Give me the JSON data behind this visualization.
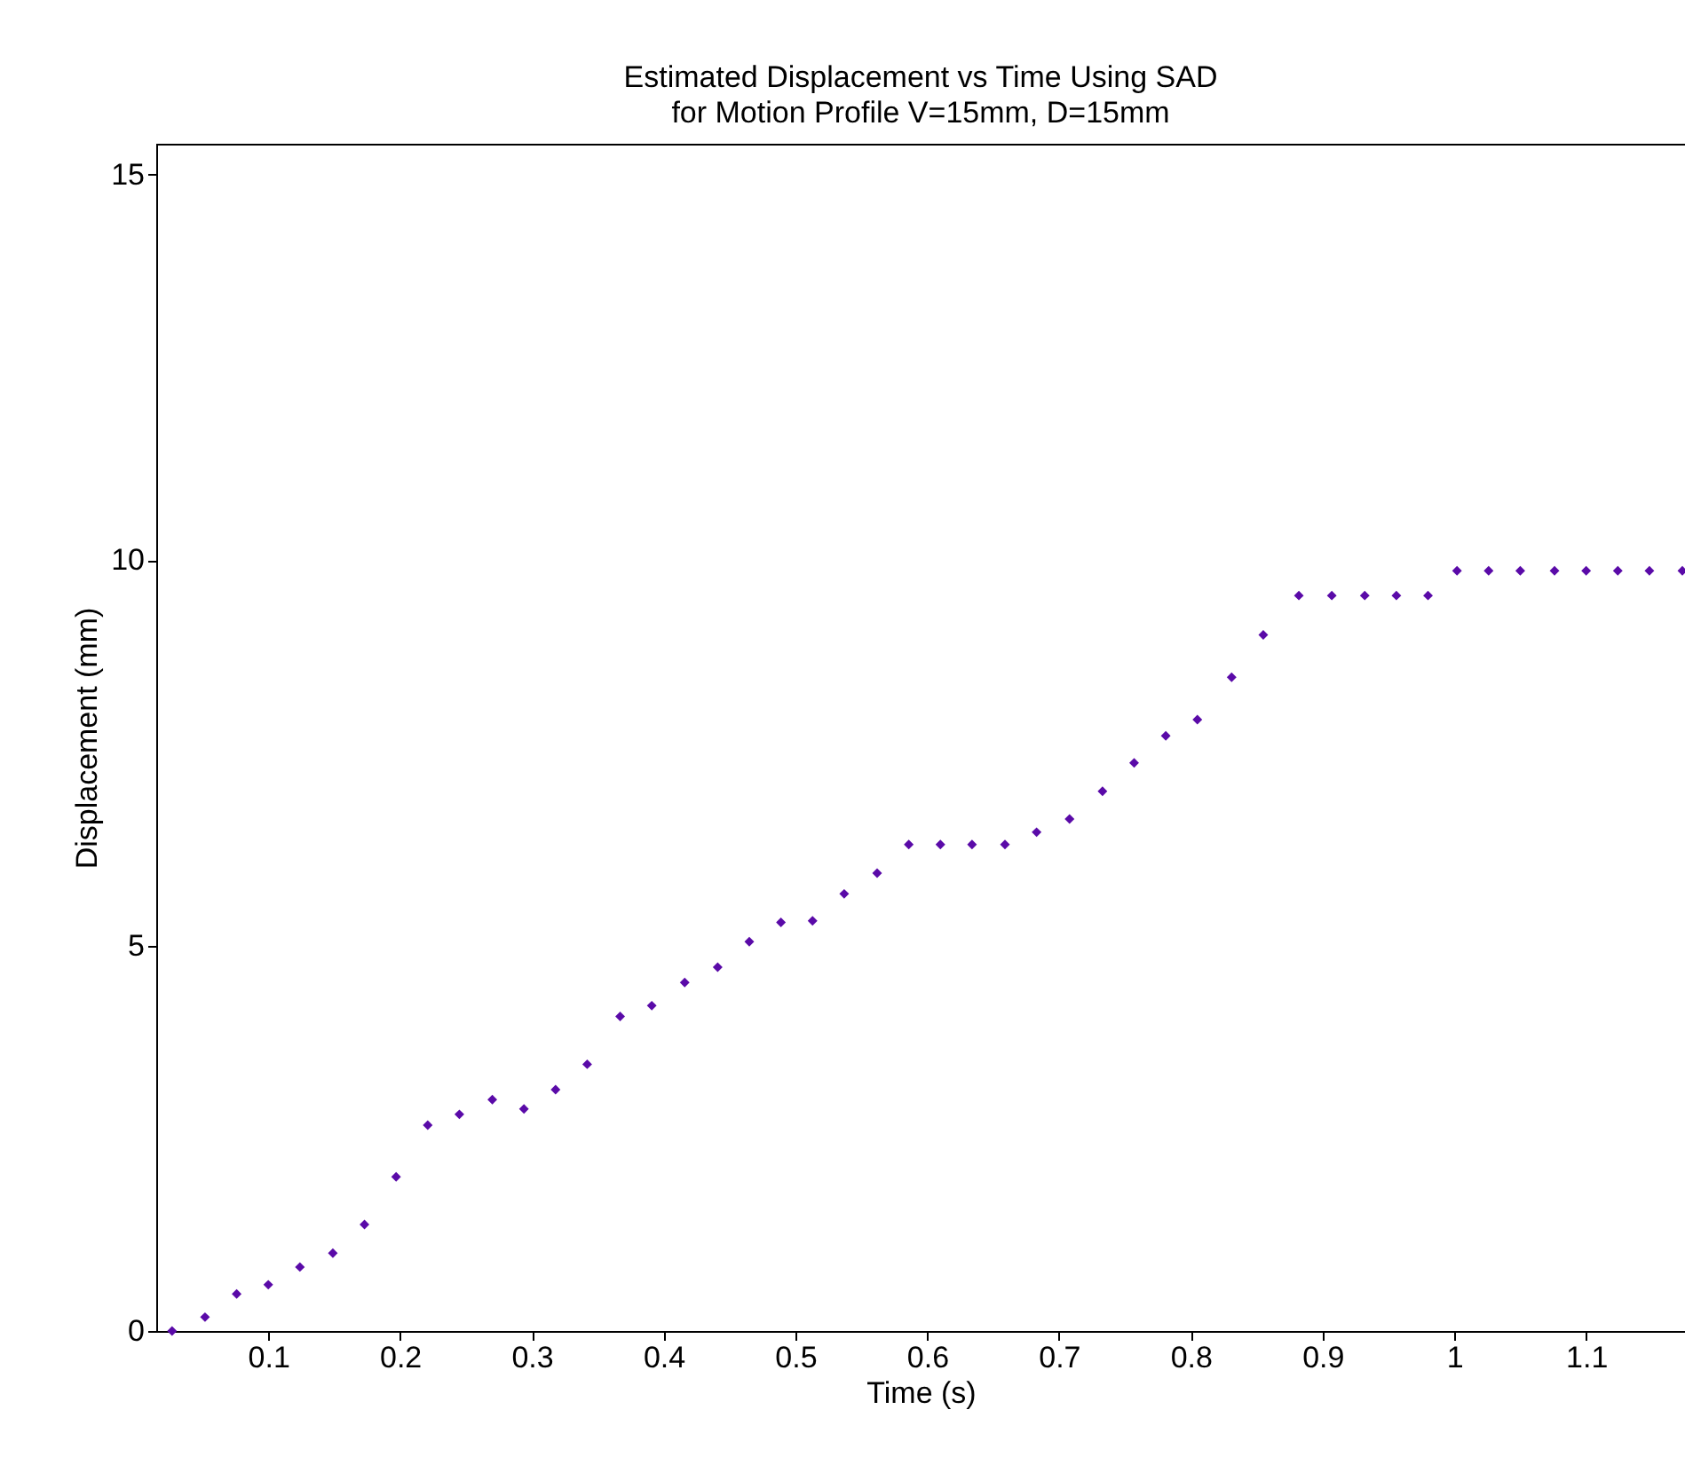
{
  "chart_data": {
    "type": "scatter",
    "title": "Estimated Displacement vs Time Using SAD",
    "subtitle": "for Motion Profile V=15mm, D=15mm",
    "xlabel": "Time (s)",
    "ylabel": "Displacement (mm)",
    "x": [
      0.027,
      0.052,
      0.076,
      0.1,
      0.124,
      0.149,
      0.173,
      0.197,
      0.221,
      0.245,
      0.27,
      0.294,
      0.318,
      0.342,
      0.367,
      0.391,
      0.416,
      0.441,
      0.465,
      0.489,
      0.513,
      0.537,
      0.562,
      0.586,
      0.61,
      0.634,
      0.659,
      0.683,
      0.708,
      0.733,
      0.757,
      0.781,
      0.805,
      0.831,
      0.855,
      0.882,
      0.907,
      0.932,
      0.956,
      0.98,
      1.002,
      1.026,
      1.05,
      1.076,
      1.1,
      1.124,
      1.148,
      1.173
    ],
    "series": [
      {
        "color": "#5a0aa8",
        "values": [
          0,
          0.18,
          0.48,
          0.6,
          0.83,
          1.01,
          1.38,
          2.0,
          2.67,
          2.81,
          3.0,
          2.88,
          3.13,
          3.46,
          4.08,
          4.22,
          4.52,
          4.72,
          5.05,
          5.3,
          5.32,
          5.67,
          5.94,
          6.31,
          6.31,
          6.31,
          6.31,
          6.47,
          6.64,
          7.0,
          7.37,
          7.72,
          7.93,
          8.48,
          9.03,
          9.54,
          9.54,
          9.54,
          9.54,
          9.54,
          9.86,
          9.86,
          9.86,
          9.86,
          9.86,
          9.86,
          9.86,
          9.86
        ]
      }
    ],
    "xlim": [
      0.015,
      1.175
    ],
    "xticks": [
      0.1,
      0.2,
      0.3,
      0.4,
      0.5,
      0.6,
      0.7,
      0.8,
      0.9,
      1,
      1.1
    ],
    "ylim": [
      0,
      15.4
    ],
    "yticks": [
      0,
      5,
      10,
      15
    ],
    "marker": "diamond",
    "grid": false
  }
}
